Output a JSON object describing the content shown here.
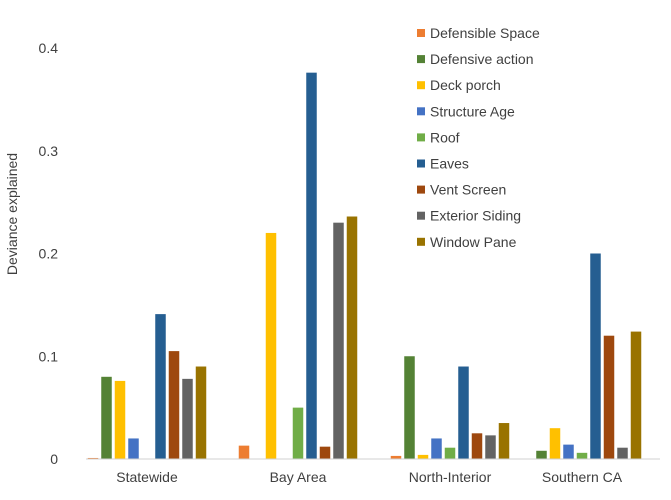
{
  "chart_data": {
    "type": "bar",
    "title": "",
    "xlabel": "",
    "ylabel": "Deviance explained",
    "ylim": [
      0,
      0.4
    ],
    "yticks": [
      "0",
      "0.1",
      "0.2",
      "0.3",
      "0.4"
    ],
    "grid": false,
    "legend_position": "top-right",
    "categories": [
      "Statewide",
      "Bay Area",
      "North-Interior",
      "Southern CA"
    ],
    "series": [
      {
        "name": "Defensible Space",
        "color": "#ED7D31",
        "values": [
          0.001,
          0.013,
          0.003,
          0.0
        ]
      },
      {
        "name": "Defensive action",
        "color": "#548235",
        "values": [
          0.08,
          0.0,
          0.1,
          0.008
        ]
      },
      {
        "name": "Deck porch",
        "color": "#FFC000",
        "values": [
          0.076,
          0.22,
          0.004,
          0.03
        ]
      },
      {
        "name": "Structure Age",
        "color": "#4472C4",
        "values": [
          0.02,
          0.0,
          0.02,
          0.014
        ]
      },
      {
        "name": "Roof",
        "color": "#70AD47",
        "values": [
          0.0,
          0.05,
          0.011,
          0.006
        ]
      },
      {
        "name": "Eaves",
        "color": "#255E91",
        "values": [
          0.141,
          0.376,
          0.09,
          0.2
        ]
      },
      {
        "name": "Vent Screen",
        "color": "#9E480E",
        "values": [
          0.105,
          0.012,
          0.025,
          0.12
        ]
      },
      {
        "name": "Exterior Siding",
        "color": "#636363",
        "values": [
          0.078,
          0.23,
          0.023,
          0.011
        ]
      },
      {
        "name": "Window Pane",
        "color": "#997300",
        "values": [
          0.09,
          0.236,
          0.035,
          0.124
        ]
      }
    ]
  }
}
